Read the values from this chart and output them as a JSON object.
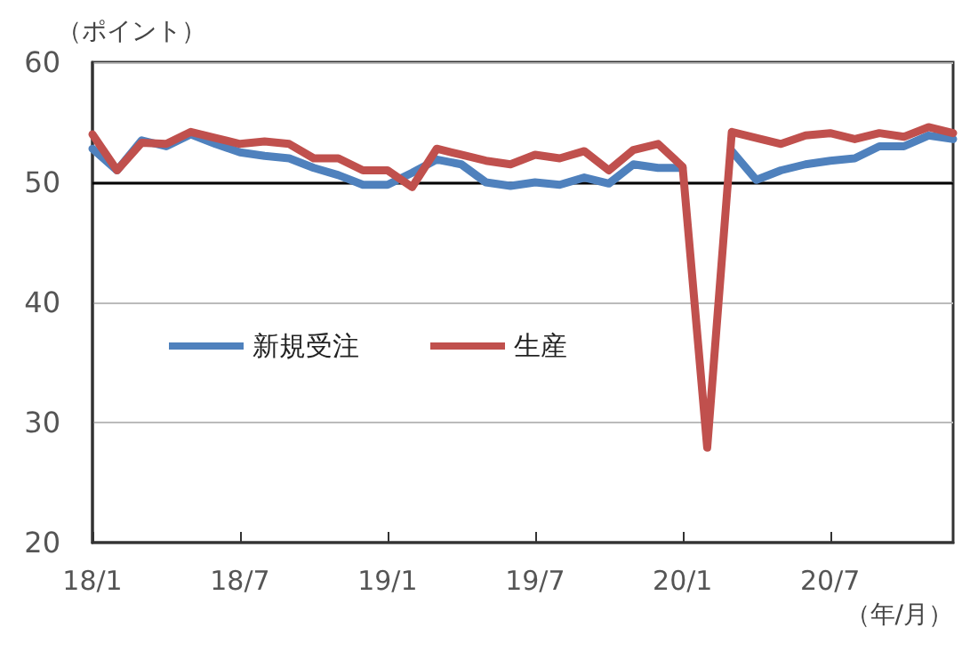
{
  "chart_data": {
    "type": "line",
    "ylabel": "（ポイント）",
    "xlabel": "（年/月）",
    "categories": [
      "18/1",
      null,
      null,
      null,
      null,
      null,
      "18/7",
      null,
      null,
      null,
      null,
      null,
      "19/1",
      null,
      null,
      null,
      null,
      null,
      "19/7",
      null,
      null,
      null,
      null,
      null,
      "20/1",
      null,
      null,
      null,
      null,
      null,
      "20/7",
      null,
      null,
      null,
      null,
      null
    ],
    "series": [
      {
        "name": "新規受注",
        "color": "#4f81bd",
        "values": [
          52.8,
          51.0,
          53.5,
          53.0,
          54.0,
          53.2,
          52.5,
          52.2,
          52.0,
          51.2,
          50.6,
          49.8,
          49.8,
          50.8,
          51.9,
          51.5,
          50.0,
          49.7,
          50.0,
          49.8,
          50.4,
          49.9,
          51.5,
          51.2,
          51.2,
          null,
          52.6,
          50.2,
          51.0,
          51.5,
          51.8,
          52.0,
          53.0,
          53.0,
          53.9,
          53.6
        ]
      },
      {
        "name": "生産",
        "color": "#c0504d",
        "values": [
          54.0,
          51.0,
          53.3,
          53.2,
          54.2,
          53.7,
          53.2,
          53.4,
          53.2,
          52.0,
          52.0,
          51.0,
          51.0,
          49.6,
          52.8,
          52.3,
          51.8,
          51.5,
          52.3,
          52.0,
          52.6,
          51.0,
          52.7,
          53.2,
          51.3,
          27.9,
          54.2,
          53.7,
          53.2,
          53.9,
          54.1,
          53.6,
          54.1,
          53.8,
          54.6,
          54.1
        ]
      }
    ],
    "ylim": [
      20,
      60
    ],
    "yticks": [
      20,
      30,
      40,
      50,
      60
    ],
    "ref_lines": [
      {
        "axis": "y",
        "value": 50,
        "color": "#000000"
      }
    ],
    "grid": "y",
    "legend": "left",
    "marker": "none",
    "line_style": "solid"
  }
}
